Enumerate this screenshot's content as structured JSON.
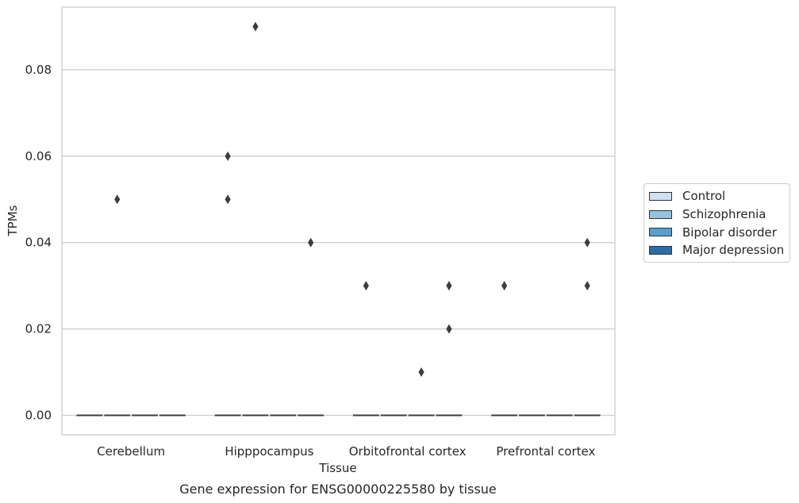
{
  "chart_data": {
    "type": "box",
    "xlabel": "Tissue",
    "ylabel": "TPMs",
    "caption": "Gene expression for ENSG00000225580 by tissue",
    "categories": [
      "Cerebellum",
      "Hipppocampus",
      "Orbitofrontal cortex",
      "Prefrontal cortex"
    ],
    "ylim": [
      -0.0045,
      0.0945
    ],
    "yticks": [
      "0.00",
      "0.02",
      "0.04",
      "0.06",
      "0.08"
    ],
    "ytick_values": [
      0,
      0.02,
      0.04,
      0.06,
      0.08
    ],
    "grid": true,
    "legend_position": "right",
    "series": [
      {
        "name": "Control",
        "color": "#d0e2f2",
        "median": [
          0,
          0,
          0,
          0
        ],
        "outliers": [
          [],
          [
            0.06,
            0.05
          ],
          [
            0.03
          ],
          [
            0.03
          ]
        ]
      },
      {
        "name": "Schizophrenia",
        "color": "#95c3df",
        "median": [
          0,
          0,
          0,
          0
        ],
        "outliers": [
          [
            0.05
          ],
          [
            0.09
          ],
          [],
          []
        ]
      },
      {
        "name": "Bipolar disorder",
        "color": "#5a9ecd",
        "median": [
          0,
          0,
          0,
          0
        ],
        "outliers": [
          [],
          [],
          [
            0.01
          ],
          []
        ]
      },
      {
        "name": "Major depression",
        "color": "#2b6ca8",
        "median": [
          0,
          0,
          0,
          0
        ],
        "outliers": [
          [],
          [
            0.04
          ],
          [
            0.03,
            0.02
          ],
          [
            0.04,
            0.03
          ]
        ]
      }
    ]
  }
}
